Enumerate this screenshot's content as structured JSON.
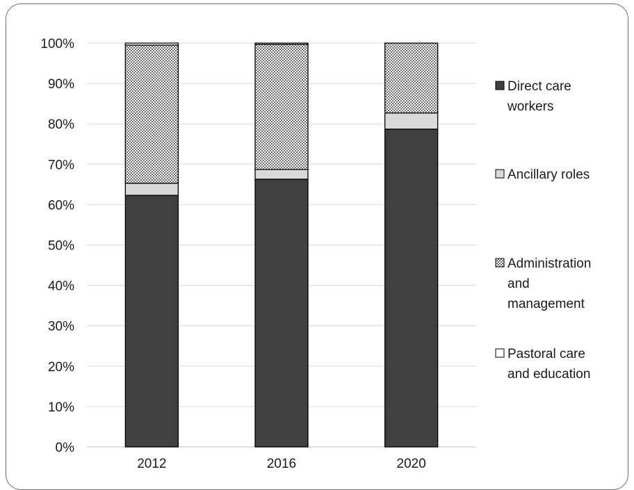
{
  "chart_data": {
    "type": "bar",
    "stacked": true,
    "categories": [
      "2012",
      "2016",
      "2020"
    ],
    "ylim": [
      0,
      100
    ],
    "yticks": [
      "0%",
      "10%",
      "20%",
      "30%",
      "40%",
      "50%",
      "60%",
      "70%",
      "80%",
      "90%",
      "100%"
    ],
    "grid": true,
    "legend_position": "right",
    "series": [
      {
        "name": "Direct care workers",
        "values": [
          62.3,
          66.3,
          78.7
        ],
        "color": "#404040",
        "pattern": "solid"
      },
      {
        "name": "Ancillary roles",
        "values": [
          3.0,
          2.4,
          4.0
        ],
        "color": "#d9d9d9",
        "pattern": "solid"
      },
      {
        "name": "Administration and management",
        "values": [
          34.2,
          31.0,
          17.3
        ],
        "color": "#9a9a9a",
        "pattern": "checker"
      },
      {
        "name": "Pastoral care and education",
        "values": [
          0.5,
          0.3,
          0.0
        ],
        "color": "#ffffff",
        "pattern": "solid"
      }
    ]
  }
}
